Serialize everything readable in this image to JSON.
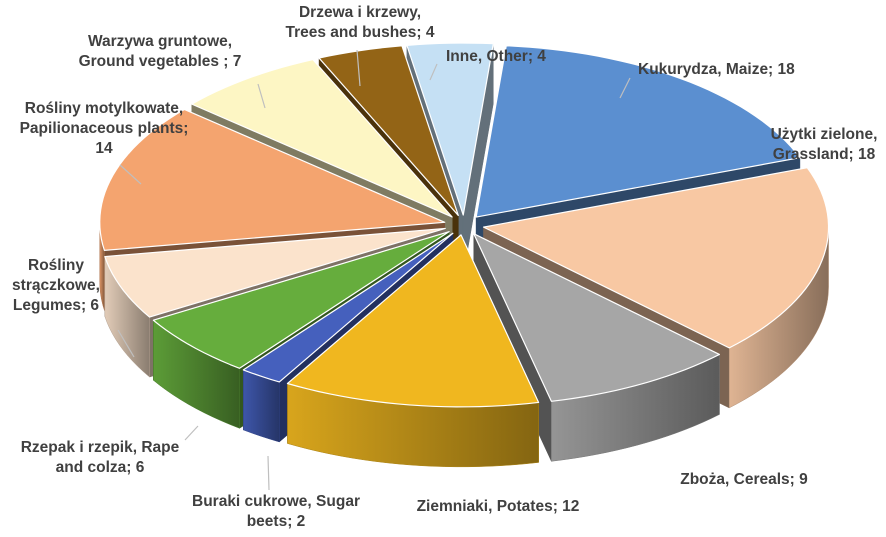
{
  "chart_data": {
    "type": "pie",
    "title": "",
    "style": "3d-exploded",
    "slices": [
      {
        "label": [
          "Kukurydza, Maize; 18"
        ],
        "value": 18,
        "color": "#5b8fd0"
      },
      {
        "label": [
          "Użytki zielone,",
          "Grassland; 18"
        ],
        "value": 18,
        "color": "#f8c8a3"
      },
      {
        "label": [
          "Zboża, Cereals; 9"
        ],
        "value": 9,
        "color": "#a6a6a6"
      },
      {
        "label": [
          "Ziemniaki, Potates; 12"
        ],
        "value": 12,
        "color": "#f0b71f"
      },
      {
        "label": [
          "Buraki cukrowe, Sugar",
          "beets; 2"
        ],
        "value": 2,
        "color": "#4560bd"
      },
      {
        "label": [
          "Rzepak i rzepik, Rape",
          "and colza; 6"
        ],
        "value": 6,
        "color": "#66ad3d"
      },
      {
        "label": [
          "Rośliny",
          "strączkowe,",
          "Legumes; 6"
        ],
        "value": 6,
        "color": "#fbe3cc"
      },
      {
        "label": [
          "Rośliny motylkowate,",
          "Papilionaceous plants;",
          "14"
        ],
        "value": 14,
        "color": "#f4a46f"
      },
      {
        "label": [
          "Warzywa gruntowe,",
          "Ground vegetables ; 7"
        ],
        "value": 7,
        "color": "#fdf6c4"
      },
      {
        "label": [
          "Drzewa i krzewy,",
          "Trees and bushes; 4"
        ],
        "value": 4,
        "color": "#936416"
      },
      {
        "label": [
          "Inne, Other; 4"
        ],
        "value": 4,
        "color": "#c5e0f4"
      }
    ]
  }
}
